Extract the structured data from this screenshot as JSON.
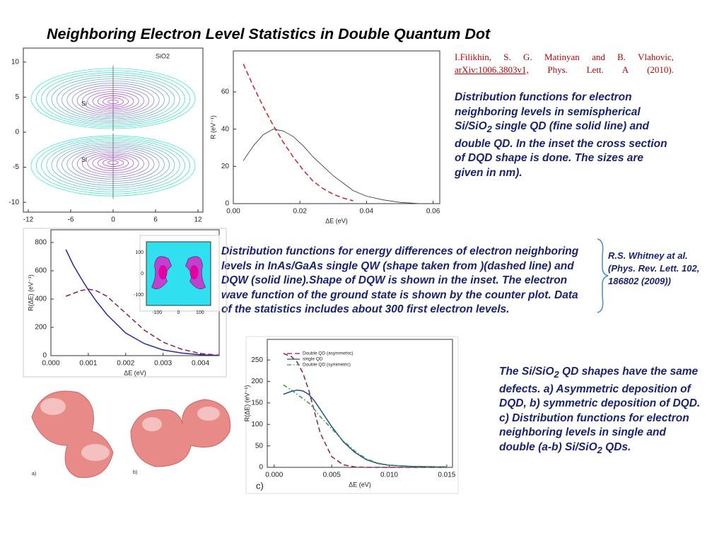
{
  "title": "Neighboring  Electron Level Statistics in Double Quantum Dot",
  "reference": {
    "authors": "I.Filikhin, S. G. Matinyan and B. Vlahovic,",
    "link": "arXiv:1006.3803v1,",
    "journal": "Phys. Lett. A (2010)."
  },
  "caption_1": [
    "Distribution functions for electron neighboring levels in semispherical Si/SiO",
    "2",
    " single QD (fine solid line) and double QD. In the inset the cross section of DQD shape is done. The sizes are given in nm)."
  ],
  "caption_2": "Distribution functions for energy differences of electron neighboring levels in InAs/GaAs single QW  (shape taken from )(dashed line) and DQW (solid line).Shape of DQW is shown in the inset. The electron wave function of the ground state is shown by the counter plot. Data of the statistics includes about 300 first electron levels.",
  "side_note": "R.S. Whitney at al. (Phys. Rev. Lett. 102, 186802 (2009))",
  "caption_3": [
    "The Si/SiO",
    "2",
    " QD shapes have the same defects. a) Asymmetric deposition of DQD,  b) symmetric deposition of DQD. c) Distribution functions for electron neighboring levels in single and double (a-b) Si/SiO",
    "2",
    " QDs."
  ],
  "shape_labels": [
    "a)",
    "b)"
  ],
  "chart_data": [
    {
      "type": "contour",
      "annotations": [
        "SiO2",
        "Si",
        "Si"
      ],
      "xlim": [
        -12.7,
        12.7
      ],
      "xticks": [
        -12,
        -6,
        0,
        6,
        12
      ],
      "ylim": [
        -11.4,
        12
      ],
      "yticks": [
        10,
        5,
        0,
        -5,
        -10
      ]
    },
    {
      "type": "line",
      "x_label": "ΔE (eV)",
      "y_label": "R (eV⁻¹)",
      "x": [
        0.003,
        0.006,
        0.009,
        0.012,
        0.015,
        0.018,
        0.021,
        0.024,
        0.027,
        0.03,
        0.033,
        0.036,
        0.04,
        0.045,
        0.05,
        0.056
      ],
      "series": [
        {
          "color": "#d42020",
          "dash": "dashed",
          "values": [
            75,
            63,
            52,
            42,
            33,
            25,
            18,
            12,
            8,
            5,
            3,
            1.5,
            null,
            null,
            null,
            null
          ]
        },
        {
          "color": "#333333",
          "dash": "solid",
          "values": [
            23,
            31,
            37,
            40,
            39,
            36,
            31,
            25,
            20,
            15,
            11,
            7,
            4,
            2,
            0.7,
            0
          ]
        }
      ],
      "xlim": [
        0,
        0.062
      ],
      "xticks": [
        {
          "value": 0,
          "label": "0.00"
        },
        0.02,
        0.04,
        0.06
      ],
      "ylim": [
        0,
        82
      ],
      "yticks": [
        0,
        20,
        40,
        60
      ]
    },
    {
      "type": "line",
      "x_label": "ΔE (eV)",
      "y_label": "R(ΔE) (eV⁻¹)",
      "x": [
        0.0004,
        0.0006,
        0.0008,
        0.001,
        0.0012,
        0.0015,
        0.002,
        0.0025,
        0.003,
        0.0035,
        0.004,
        0.0045
      ],
      "series": [
        {
          "color": "#2a2a9a",
          "dash": "solid",
          "values": [
            750,
            640,
            550,
            465,
            390,
            290,
            160,
            85,
            40,
            18,
            6,
            1
          ]
        },
        {
          "color": "#8a2050",
          "dash": "dashed",
          "values": [
            420,
            440,
            460,
            470,
            460,
            420,
            300,
            180,
            95,
            45,
            15,
            3
          ]
        }
      ],
      "xlim": [
        0,
        0.0045
      ],
      "xticks": [
        {
          "value": 0,
          "label": "0.000"
        },
        0.001,
        0.002,
        0.003,
        0.004
      ],
      "ylim": [
        0,
        890
      ],
      "yticks": [
        0,
        200,
        400,
        600,
        800
      ],
      "inset": {
        "xticks": [
          -100,
          0,
          100
        ],
        "yticks": [
          100,
          0,
          -100
        ]
      }
    },
    {
      "type": "line",
      "x_label": "ΔE (eV)",
      "y_label": "R(ΔE) (eV⁻¹)",
      "panel_label": "c)",
      "legend": "top-left",
      "x": [
        0.0008,
        0.0015,
        0.002,
        0.0025,
        0.003,
        0.0035,
        0.004,
        0.005,
        0.006,
        0.007,
        0.008,
        0.009,
        0.01,
        0.012,
        0.015
      ],
      "series": [
        {
          "name": "Double QD (asymmetric)",
          "color": "#8a2050",
          "dash": "dashed",
          "values": [
            265,
            258,
            245,
            220,
            180,
            130,
            80,
            25,
            6,
            1,
            0,
            0,
            0,
            0,
            0
          ]
        },
        {
          "name": "single QD",
          "color": "#1f4f8f",
          "dash": "solid",
          "values": [
            170,
            177,
            180,
            178,
            170,
            155,
            135,
            95,
            60,
            35,
            18,
            9,
            5,
            2,
            1
          ]
        },
        {
          "name": "Double QD (symmetric)",
          "color": "#3a9a3a",
          "dash": "dashdot",
          "values": [
            192,
            180,
            170,
            160,
            150,
            135,
            118,
            90,
            62,
            38,
            20,
            10,
            5,
            2,
            1
          ]
        }
      ],
      "xlim": [
        -0.0006,
        0.0155
      ],
      "xticks": [
        {
          "value": 0,
          "label": "0.000"
        },
        0.005,
        {
          "value": 0.01,
          "label": "0.010"
        },
        0.015
      ],
      "ylim": [
        0,
        298
      ],
      "yticks": [
        0,
        50,
        100,
        150,
        200,
        250
      ]
    }
  ]
}
